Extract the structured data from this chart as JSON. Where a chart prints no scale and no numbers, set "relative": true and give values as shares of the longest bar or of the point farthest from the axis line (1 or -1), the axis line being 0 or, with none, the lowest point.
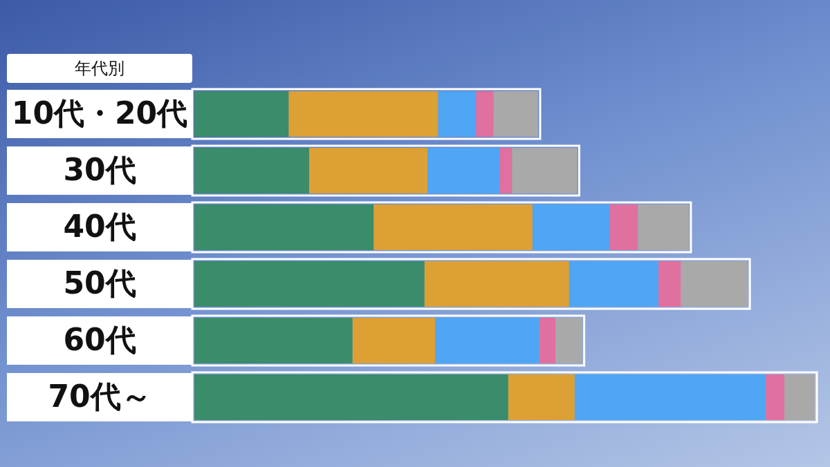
{
  "chart_data": {
    "type": "bar",
    "orientation": "horizontal",
    "stacked": true,
    "relative": true,
    "ylabel": "年代別",
    "categories": [
      "10代・20代",
      "30代",
      "40代",
      "50代",
      "60代",
      "70代～"
    ],
    "series": [
      {
        "color": "#3a8c6a",
        "values": [
          0.152,
          0.185,
          0.289,
          0.371,
          0.255,
          0.506
        ]
      },
      {
        "color": "#dda034",
        "values": [
          0.241,
          0.191,
          0.256,
          0.233,
          0.133,
          0.107
        ]
      },
      {
        "color": "#4ea6f5",
        "values": [
          0.061,
          0.116,
          0.124,
          0.144,
          0.168,
          0.308
        ]
      },
      {
        "color": "#e0709f",
        "values": [
          0.028,
          0.02,
          0.046,
          0.036,
          0.026,
          0.03
        ]
      },
      {
        "color": "#a9a9a9",
        "values": [
          0.072,
          0.105,
          0.082,
          0.108,
          0.043,
          0.049
        ]
      }
    ]
  }
}
